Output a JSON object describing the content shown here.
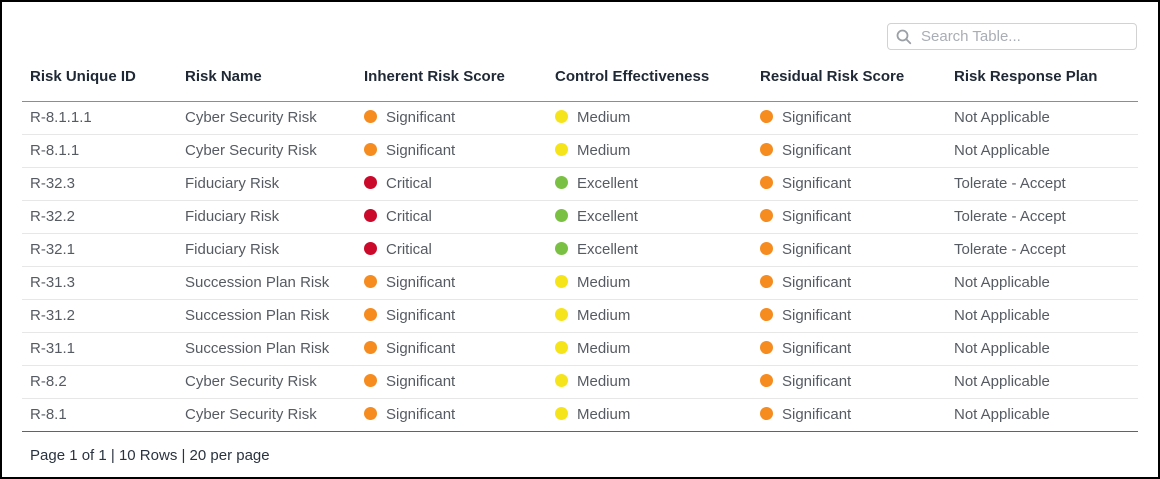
{
  "search": {
    "placeholder": "Search Table...",
    "value": ""
  },
  "status_colors": {
    "Significant": "#f68b1f",
    "Critical": "#cb092b",
    "Medium": "#f5e41b",
    "Excellent": "#7ac143"
  },
  "icon_colors": {
    "search_icon": "#9aa0a6"
  },
  "table": {
    "columns": [
      "Risk Unique ID",
      "Risk Name",
      "Inherent Risk Score",
      "Control Effectiveness",
      "Residual Risk Score",
      "Risk Response Plan"
    ],
    "dot_columns": [
      2,
      3,
      4
    ],
    "rows": [
      [
        "R-8.1.1.1",
        "Cyber Security Risk",
        "Significant",
        "Medium",
        "Significant",
        "Not Applicable"
      ],
      [
        "R-8.1.1",
        "Cyber Security Risk",
        "Significant",
        "Medium",
        "Significant",
        "Not Applicable"
      ],
      [
        "R-32.3",
        "Fiduciary Risk",
        "Critical",
        "Excellent",
        "Significant",
        "Tolerate - Accept"
      ],
      [
        "R-32.2",
        "Fiduciary Risk",
        "Critical",
        "Excellent",
        "Significant",
        "Tolerate - Accept"
      ],
      [
        "R-32.1",
        "Fiduciary Risk",
        "Critical",
        "Excellent",
        "Significant",
        "Tolerate - Accept"
      ],
      [
        "R-31.3",
        "Succession Plan Risk",
        "Significant",
        "Medium",
        "Significant",
        "Not Applicable"
      ],
      [
        "R-31.2",
        "Succession Plan Risk",
        "Significant",
        "Medium",
        "Significant",
        "Not Applicable"
      ],
      [
        "R-31.1",
        "Succession Plan Risk",
        "Significant",
        "Medium",
        "Significant",
        "Not Applicable"
      ],
      [
        "R-8.2",
        "Cyber Security Risk",
        "Significant",
        "Medium",
        "Significant",
        "Not Applicable"
      ],
      [
        "R-8.1",
        "Cyber Security Risk",
        "Significant",
        "Medium",
        "Significant",
        "Not Applicable"
      ]
    ]
  },
  "footer": {
    "pagination_text": "Page 1 of 1 | 10 Rows | 20 per page"
  }
}
